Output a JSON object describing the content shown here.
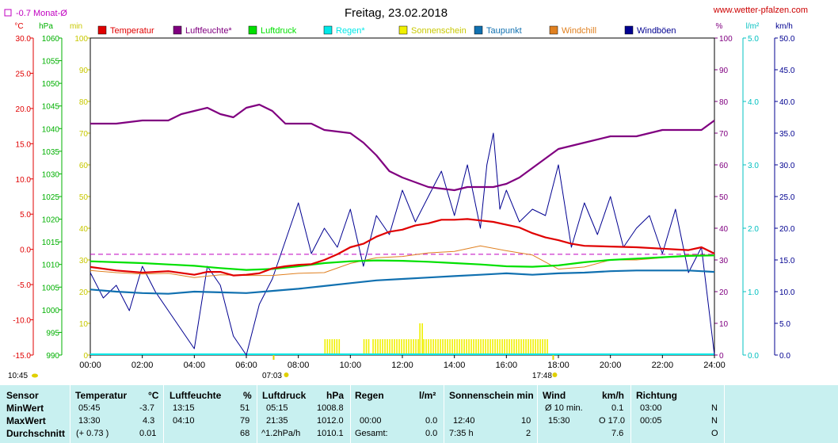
{
  "header": {
    "title": "Freitag, 23.02.2018",
    "website": "www.wetter-pfalzen.com",
    "monthly_avg_note": "-0.7 Monat-Ø"
  },
  "colors": {
    "temperature": "#e00000",
    "humidity": "#800080",
    "pressure": "#00e000",
    "rain": "#00e8e8",
    "sunshine": "#f0f000",
    "dewpoint": "#1070b0",
    "windchill": "#e08020",
    "gusts": "#000090",
    "stats_bg": "#c8f0f0"
  },
  "chart_data": {
    "type": "line",
    "title": "Freitag, 23.02.2018",
    "x_ticks": [
      "00:00",
      "02:00",
      "04:00",
      "06:00",
      "08:00",
      "10:00",
      "12:00",
      "14:00",
      "16:00",
      "18:00",
      "20:00",
      "22:00",
      "24:00"
    ],
    "axes": {
      "temp": {
        "label": "°C",
        "ylim": [
          -15,
          30
        ],
        "ticks": [
          "30.0",
          "25.0",
          "20.0",
          "15.0",
          "10.0",
          "5.0",
          "0.0",
          "-5.0",
          "-10.0",
          "-15.0"
        ]
      },
      "pressure": {
        "label": "hPa",
        "ylim": [
          990,
          1060
        ],
        "ticks": [
          "1060",
          "1055",
          "1050",
          "1045",
          "1040",
          "1035",
          "1030",
          "1025",
          "1020",
          "1015",
          "1010",
          "1005",
          "1000",
          "995",
          "990"
        ]
      },
      "minutes": {
        "label": "min",
        "ylim": [
          0,
          100
        ],
        "ticks": [
          "100",
          "90",
          "80",
          "70",
          "60",
          "50",
          "40",
          "30",
          "20",
          "10",
          "0"
        ]
      },
      "humidity": {
        "label": "%",
        "ylim": [
          0,
          100
        ],
        "ticks": [
          "100",
          "90",
          "80",
          "70",
          "60",
          "50",
          "40",
          "30",
          "20",
          "10",
          "0"
        ]
      },
      "rain": {
        "label": "l/m²",
        "ylim": [
          0,
          5
        ],
        "ticks": [
          "5.0",
          "4.0",
          "3.0",
          "2.0",
          "1.0",
          "0.0"
        ]
      },
      "wind": {
        "label": "km/h",
        "ylim": [
          0,
          50
        ],
        "ticks": [
          "50.0",
          "45.0",
          "40.0",
          "35.0",
          "30.0",
          "25.0",
          "20.0",
          "15.0",
          "10.0",
          "5.0",
          "0.0"
        ]
      }
    },
    "legend": [
      "Temperatur",
      "Luftfeuchte*",
      "Luftdruck",
      "Regen*",
      "Sonnenschein",
      "Taupunkt",
      "Windchill",
      "Windböen"
    ],
    "monthly_avg_temp": -0.7,
    "sunrise": "07:03",
    "sunset": "17:48",
    "moon_left": "10:45",
    "series": [
      {
        "name": "Temperatur",
        "axis": "temp",
        "x": [
          0,
          1,
          2,
          3,
          4,
          4.5,
          5,
          5.5,
          6,
          6.5,
          7,
          7.5,
          8,
          8.5,
          9,
          9.5,
          10,
          10.5,
          11,
          11.5,
          12,
          12.5,
          13,
          13.5,
          14,
          14.5,
          15,
          15.5,
          16,
          16.5,
          17,
          17.5,
          18,
          18.5,
          19,
          20,
          21,
          22,
          23,
          23.5,
          24
        ],
        "y": [
          -2.5,
          -3,
          -3.3,
          -3.1,
          -3.6,
          -3.2,
          -3.2,
          -3.7,
          -3.6,
          -3.4,
          -2.7,
          -2.4,
          -2.2,
          -2.1,
          -1.5,
          -0.7,
          0.3,
          0.8,
          1.8,
          2.5,
          2.8,
          3.4,
          3.7,
          4.2,
          4.2,
          4.3,
          4.1,
          3.9,
          3.5,
          3.1,
          2.3,
          1.7,
          1.3,
          0.8,
          0.5,
          0.4,
          0.3,
          0.1,
          -0.1,
          0.3,
          -0.6
        ]
      },
      {
        "name": "Luftfeuchte*",
        "axis": "humidity",
        "x": [
          0,
          1,
          2,
          2.5,
          3,
          3.5,
          4,
          4.5,
          5,
          5.5,
          6,
          6.5,
          7,
          7.5,
          8,
          8.5,
          9,
          10,
          10.5,
          11,
          11.5,
          12,
          13,
          14,
          14.5,
          15,
          15.5,
          16,
          16.5,
          17,
          17.5,
          18,
          19,
          20,
          21,
          22,
          23,
          23.5,
          24
        ],
        "y": [
          73,
          73,
          74,
          74,
          74,
          76,
          77,
          78,
          76,
          75,
          78,
          79,
          77,
          73,
          73,
          73,
          71,
          70,
          67,
          63,
          58,
          56,
          53,
          52,
          53,
          53,
          53,
          54,
          56,
          59,
          62,
          65,
          67,
          69,
          69,
          71,
          71,
          71,
          74
        ]
      },
      {
        "name": "Luftdruck",
        "axis": "pressure",
        "x": [
          0,
          1,
          2,
          3,
          4,
          5,
          6,
          7,
          8,
          9,
          10,
          11,
          12,
          13,
          14,
          15,
          16,
          17,
          18,
          19,
          20,
          21,
          22,
          23,
          24
        ],
        "y": [
          1010.7,
          1010.5,
          1010.3,
          1010.0,
          1009.7,
          1009.2,
          1008.8,
          1009.0,
          1009.6,
          1010.3,
          1010.7,
          1010.9,
          1010.8,
          1010.6,
          1010.3,
          1010.0,
          1009.6,
          1009.5,
          1009.8,
          1010.5,
          1011.0,
          1011.3,
          1011.6,
          1011.9,
          1012.0
        ]
      },
      {
        "name": "Taupunkt",
        "axis": "temp",
        "x": [
          0,
          1,
          2,
          3,
          4,
          5,
          6,
          7,
          8,
          9,
          10,
          11,
          12,
          13,
          14,
          15,
          16,
          17,
          18,
          19,
          20,
          21,
          22,
          23,
          24
        ],
        "y": [
          -5.7,
          -6.0,
          -6.2,
          -6.3,
          -6.0,
          -6.1,
          -6.2,
          -5.9,
          -5.6,
          -5.2,
          -4.8,
          -4.4,
          -4.2,
          -4.0,
          -3.8,
          -3.6,
          -3.4,
          -3.6,
          -3.4,
          -3.3,
          -3.1,
          -3.0,
          -3.0,
          -3.0,
          -3.2
        ]
      },
      {
        "name": "Windchill",
        "axis": "temp",
        "x": [
          0,
          1,
          2,
          3,
          4,
          5,
          6,
          7,
          8,
          9,
          10,
          11,
          12,
          13,
          14,
          15,
          16,
          17,
          18,
          19,
          20,
          21,
          22,
          23,
          24
        ],
        "y": [
          -3.0,
          -3.3,
          -3.5,
          -3.4,
          -4.0,
          -3.6,
          -3.7,
          -3.7,
          -3.4,
          -3.3,
          -2.0,
          -1.2,
          -1.0,
          -0.5,
          -0.3,
          0.5,
          -0.2,
          -0.8,
          -2.8,
          -2.5,
          -1.5,
          -1.5,
          -1.2,
          -0.8,
          -0.8
        ]
      },
      {
        "name": "Windböen",
        "axis": "wind",
        "x": [
          0,
          0.5,
          1,
          1.5,
          2,
          2.5,
          3,
          3.5,
          4,
          4.5,
          5,
          5.5,
          6,
          6.5,
          7,
          7.5,
          8,
          8.5,
          9,
          9.5,
          10,
          10.5,
          11,
          11.5,
          12,
          12.5,
          13,
          13.5,
          14,
          14.5,
          15,
          15.25,
          15.5,
          15.75,
          16,
          16.5,
          17,
          17.5,
          18,
          18.5,
          19,
          19.5,
          20,
          20.5,
          21,
          21.5,
          22,
          22.5,
          23,
          23.5,
          24
        ],
        "y": [
          13,
          9,
          11,
          7,
          14,
          10,
          7,
          4,
          1,
          14,
          11,
          3,
          0,
          8,
          12,
          18,
          24,
          16,
          20,
          17,
          23,
          14,
          22,
          19,
          26,
          21,
          25,
          29,
          22,
          30,
          20,
          30,
          35,
          23,
          26,
          21,
          23,
          22,
          30,
          17,
          24,
          19,
          25,
          17,
          20,
          22,
          16,
          23,
          13,
          17,
          0
        ]
      }
    ],
    "sunshine_bars": [
      [
        9.0,
        9.55
      ],
      [
        10.5,
        10.75
      ],
      [
        10.85,
        12.6
      ],
      [
        12.65,
        12.75
      ],
      [
        12.8,
        17.6
      ]
    ]
  },
  "stats_table": {
    "columns": [
      {
        "header": "Sensor"
      },
      {
        "header": "Temperatur",
        "unit": "°C"
      },
      {
        "header": "Luftfeuchte",
        "unit": "%"
      },
      {
        "header": "Luftdruck",
        "unit": "hPa"
      },
      {
        "header": "Regen",
        "unit": "l/m²"
      },
      {
        "header": "Sonnenschein min"
      },
      {
        "header": "Wind",
        "unit": "km/h"
      },
      {
        "header": "Richtung"
      }
    ],
    "rows": {
      "min": {
        "label": "MinWert",
        "temp_time": "05:45",
        "temp_val": "-3.7",
        "hum_time": "13:15",
        "hum_val": "51",
        "press_time": "05:15",
        "press_val": "1008.8",
        "wind_label": "Ø 10 min.",
        "wind_val": "0.1",
        "dir_time": "03:00",
        "dir_val": "N"
      },
      "max": {
        "label": "MaxWert",
        "temp_time": "13:30",
        "temp_val": "4.3",
        "hum_time": "04:10",
        "hum_val": "79",
        "press_time": "21:35",
        "press_val": "1012.0",
        "rain_time": "00:00",
        "rain_val": "0.0",
        "sun_time": "12:40",
        "sun_val": "10",
        "wind_time": "15:30",
        "wind_dir": "O 17.0",
        "dir_time": "00:05",
        "dir_val": "N"
      },
      "avg": {
        "label": "Durchschnitt",
        "temp_time": "(+ 0.73 )",
        "temp_val": "0.01",
        "hum_val": "68",
        "press_time": "^1.2hPa/h",
        "press_val": "1010.1",
        "rain_time": "Gesamt:",
        "rain_val": "0.0",
        "sun_time": "7:35 h",
        "sun_val": "2",
        "wind_val": "7.6",
        "dir_val": "O"
      }
    }
  }
}
